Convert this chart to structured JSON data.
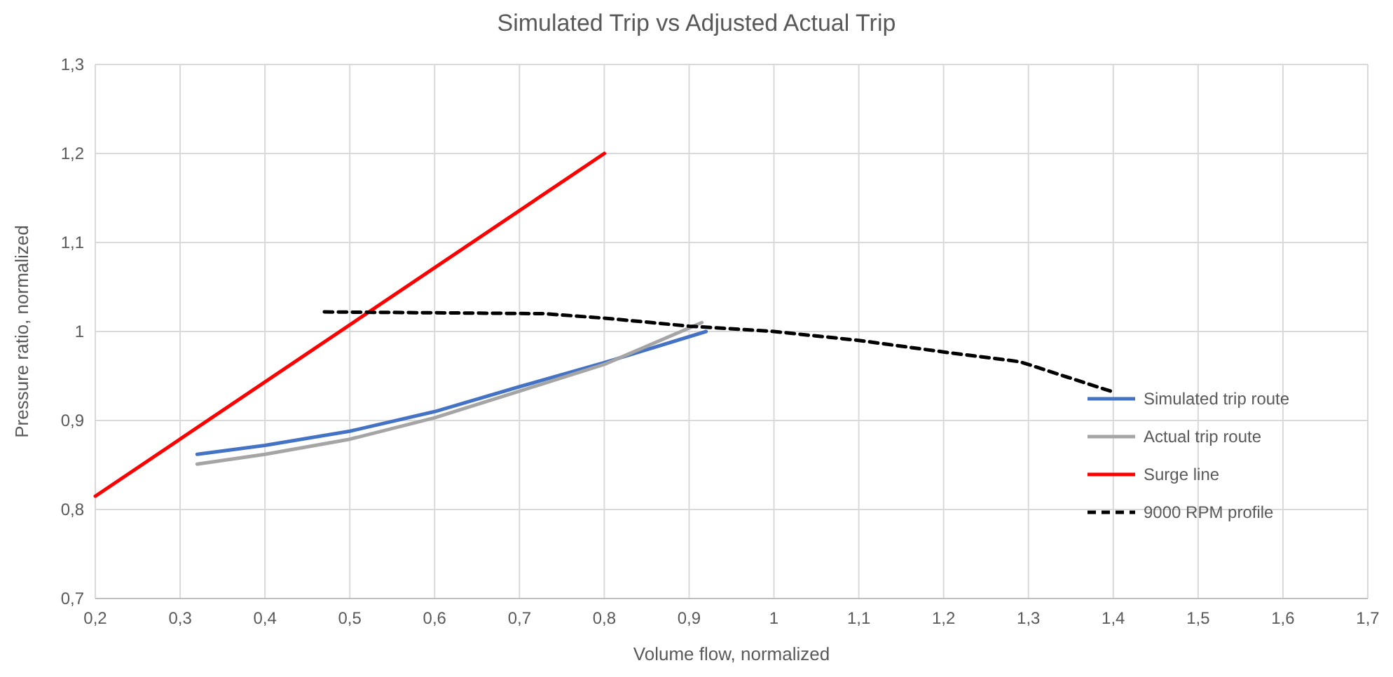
{
  "chart_data": {
    "type": "line",
    "title": "Simulated Trip vs Adjusted Actual Trip",
    "xlabel": "Volume flow, normalized",
    "ylabel": "Pressure ratio, normalized",
    "xlim": [
      0.2,
      1.7
    ],
    "xticks": [
      {
        "value": 0.2,
        "label": "0,2"
      },
      {
        "value": 0.3,
        "label": "0,3"
      },
      {
        "value": 0.4,
        "label": "0,4"
      },
      {
        "value": 0.5,
        "label": "0,5"
      },
      {
        "value": 0.6,
        "label": "0,6"
      },
      {
        "value": 0.7,
        "label": "0,7"
      },
      {
        "value": 0.8,
        "label": "0,8"
      },
      {
        "value": 0.9,
        "label": "0,9"
      },
      {
        "value": 1,
        "label": "1"
      },
      {
        "value": 1.1,
        "label": "1,1"
      },
      {
        "value": 1.2,
        "label": "1,2"
      },
      {
        "value": 1.3,
        "label": "1,3"
      },
      {
        "value": 1.4,
        "label": "1,4"
      },
      {
        "value": 1.5,
        "label": "1,5"
      },
      {
        "value": 1.6,
        "label": "1,6"
      },
      {
        "value": 1.7,
        "label": "1,7"
      }
    ],
    "ylim": [
      0.7,
      1.3
    ],
    "yticks": [
      {
        "value": 0.7,
        "label": "0,7"
      },
      {
        "value": 0.8,
        "label": "0,8"
      },
      {
        "value": 0.9,
        "label": "0,9"
      },
      {
        "value": 1,
        "label": "1"
      },
      {
        "value": 1.1,
        "label": "1,1"
      },
      {
        "value": 1.2,
        "label": "1,2"
      },
      {
        "value": 1.3,
        "label": "1,3"
      }
    ],
    "grid": true,
    "legend": "bottom right",
    "marker": "none",
    "series": [
      {
        "name": "Simulated trip route",
        "color": "#4472c4",
        "x": [
          0.32,
          0.4,
          0.5,
          0.6,
          0.7,
          0.8,
          0.92
        ],
        "values": [
          0.862,
          0.872,
          0.888,
          0.91,
          0.938,
          0.965,
          1.0
        ]
      },
      {
        "name": "Actual trip route",
        "color": "#a5a5a5",
        "x": [
          0.32,
          0.4,
          0.5,
          0.6,
          0.7,
          0.8,
          0.915
        ],
        "values": [
          0.851,
          0.862,
          0.879,
          0.903,
          0.933,
          0.963,
          1.01
        ]
      },
      {
        "name": "Surge line",
        "color": "#ff0000",
        "x": [
          0.2,
          0.8
        ],
        "values": [
          0.815,
          1.2
        ]
      },
      {
        "name": "9000 RPM profile",
        "color": "#000000",
        "line_style": "dashed",
        "x": [
          0.47,
          0.6,
          0.73,
          0.8,
          0.9,
          1.0,
          1.1,
          1.2,
          1.29,
          1.4
        ],
        "values": [
          1.022,
          1.021,
          1.02,
          1.015,
          1.006,
          1.0,
          0.99,
          0.977,
          0.966,
          0.932
        ]
      }
    ]
  }
}
